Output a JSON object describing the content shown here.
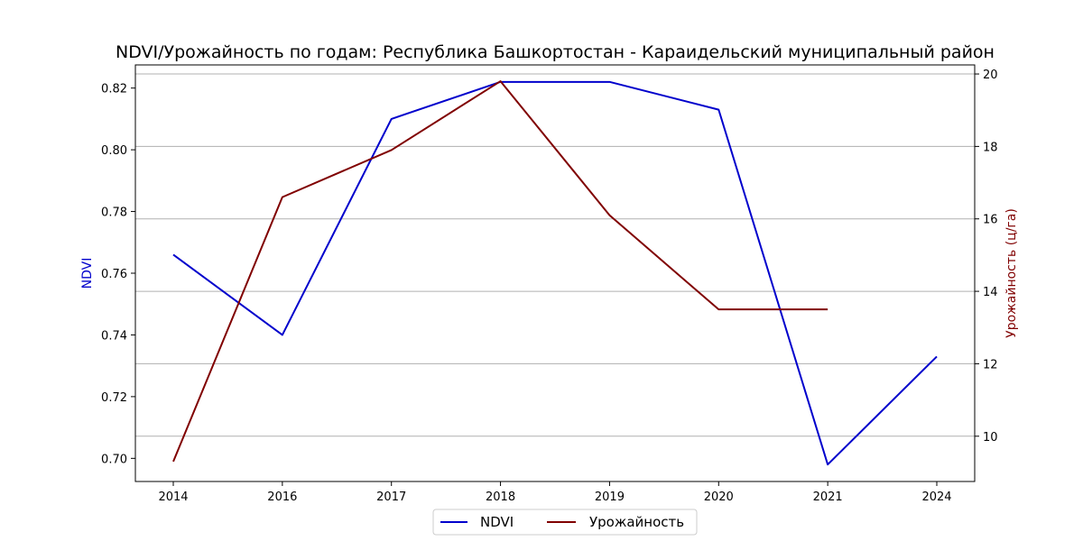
{
  "chart_data": {
    "type": "line",
    "title": "NDVI/Урожайность по годам: Республика Башкортостан - Караидельский муниципальный район",
    "categories": [
      "2014",
      "2016",
      "2017",
      "2018",
      "2019",
      "2020",
      "2021",
      "2024"
    ],
    "ylabel_left": "NDVI",
    "ylabel_right": "Урожайность (ц/га)",
    "ylim_left": [
      0.6925,
      0.8275
    ],
    "ylim_right": [
      8.75,
      20.25
    ],
    "yticks_left": [
      "0.70",
      "0.72",
      "0.74",
      "0.76",
      "0.78",
      "0.80",
      "0.82"
    ],
    "yticks_right": [
      "10",
      "12",
      "14",
      "16",
      "18",
      "20"
    ],
    "grid": "horizontal, right axis",
    "legend_position": "bottom-center",
    "series": [
      {
        "name": "NDVI",
        "axis": "left",
        "color": "#0000cc",
        "values": [
          0.766,
          0.74,
          0.81,
          0.822,
          0.822,
          0.813,
          0.698,
          0.733
        ]
      },
      {
        "name": "Урожайность",
        "axis": "right",
        "color": "#800000",
        "values": [
          9.3,
          16.6,
          17.9,
          19.8,
          16.1,
          13.5,
          13.5,
          null
        ]
      }
    ]
  }
}
